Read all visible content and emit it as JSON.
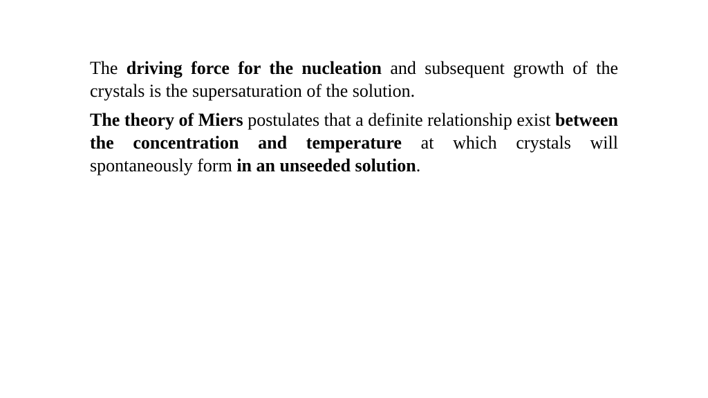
{
  "para1": {
    "s1": "The ",
    "s2": "driving force for the nucleation ",
    "s3": "and subsequent growth of the crystals is the supersaturation of the solution."
  },
  "para2": {
    "s1": "The theory of Miers ",
    "s2": "postulates that a definite relationship  exist ",
    "s3": "between the concentration and temperature ",
    "s4": "at which crystals will spontaneously form ",
    "s5": "in an unseeded solution",
    "s6": "."
  }
}
